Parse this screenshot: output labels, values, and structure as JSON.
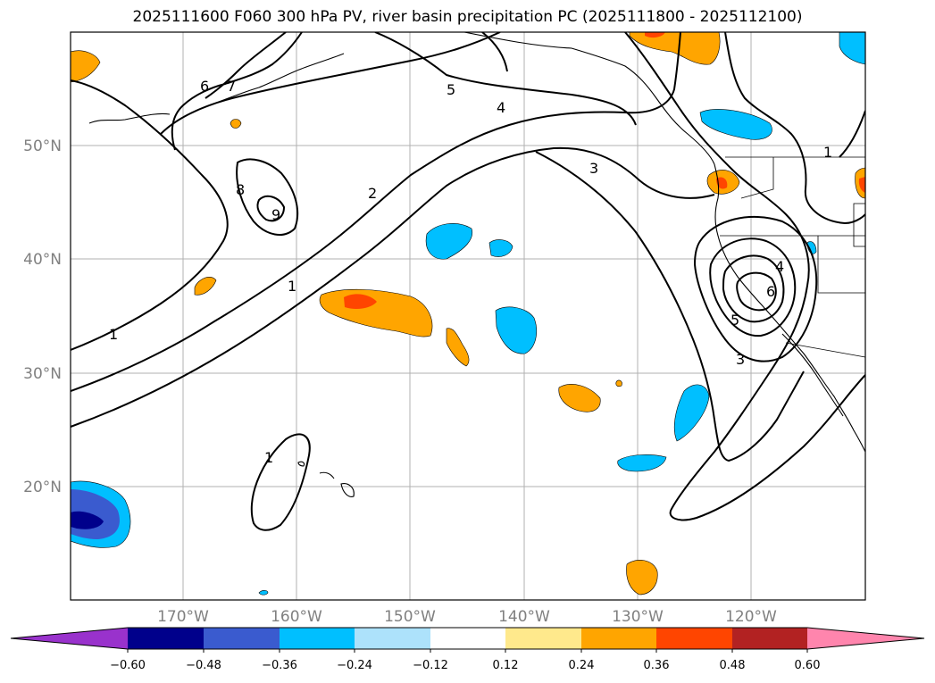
{
  "title": "2025111600 F060 300 hPa PV, river basin precipitation PC (2025111800 - 2025112100)",
  "lat_labels": [
    "50°N",
    "40°N",
    "30°N",
    "20°N"
  ],
  "lon_labels": [
    "170°W",
    "160°W",
    "150°W",
    "140°W",
    "130°W",
    "120°W"
  ],
  "contour_labels": [
    "6",
    "7",
    "5",
    "4",
    "3",
    "8",
    "9",
    "2",
    "1",
    "1",
    "1",
    "1",
    "4",
    "6",
    "5",
    "3"
  ],
  "colorbar": {
    "ticks": [
      "−0.60",
      "−0.48",
      "−0.36",
      "−0.24",
      "−0.12",
      "0.12",
      "0.24",
      "0.36",
      "0.48",
      "0.60"
    ],
    "colors": {
      "under": "#9932CC",
      "c1": "#00008B",
      "c2": "#3A5BCF",
      "c3": "#00BFFF",
      "c4": "#ADE2FB",
      "c5": "#FFFFFF",
      "c6": "#FFE98C",
      "c7": "#FFA500",
      "c8": "#FF4500",
      "c9": "#B22222",
      "over": "#FF85AD"
    }
  }
}
